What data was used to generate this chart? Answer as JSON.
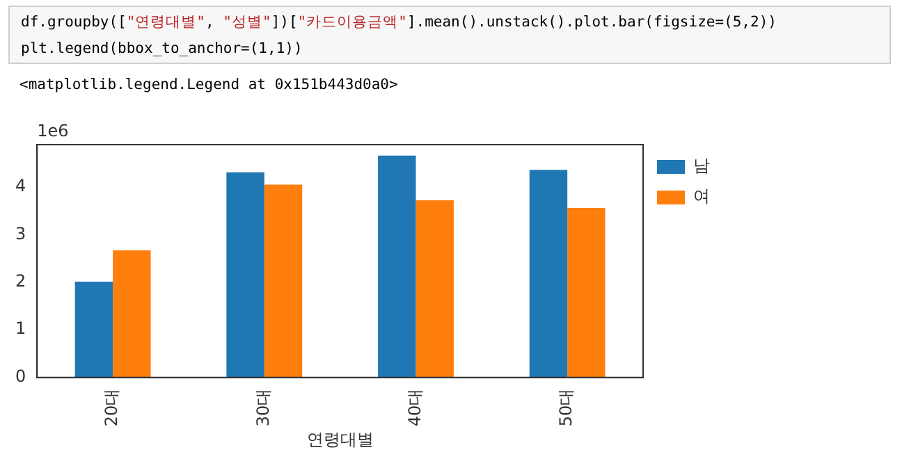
{
  "chart_data": {
    "type": "bar",
    "xlabel": "연령대별",
    "categories": [
      "20대",
      "30대",
      "40대",
      "50대"
    ],
    "series": [
      {
        "name": "남",
        "color": "#1f77b4",
        "values": [
          2.01,
          4.31,
          4.66,
          4.36
        ]
      },
      {
        "name": "여",
        "color": "#ff7f0e",
        "values": [
          2.67,
          4.05,
          3.72,
          3.56
        ]
      }
    ],
    "ylim": [
      0,
      4.89
    ],
    "yticks": [
      0,
      1,
      2,
      3,
      4
    ],
    "grid": false,
    "legend": "top right",
    "annotations": [
      "df.groupby([\"연령대별\", \"성별\"])[\"카드이용금액\"].mean().unstack().plot.bar(figsize=(5,2))",
      "plt.legend(bbox_to_anchor=(1,1))",
      "<matplotlib.legend.Legend at 0x151b443d0a0>",
      "1e6"
    ]
  }
}
